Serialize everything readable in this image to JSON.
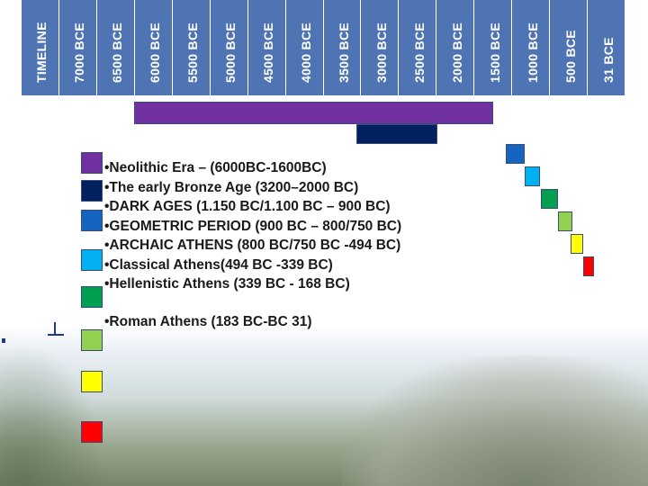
{
  "timeline": {
    "labels": [
      "TIMELINE",
      "7000 BCE",
      "6500 BCE",
      "6000 BCE",
      "5500 BCE",
      "5000 BCE",
      "4500 BCE",
      "4000 BCE",
      "3500 BCE",
      "3000 BCE",
      "2500 BCE",
      "2000 BCE",
      "1500 BCE",
      "1000 BCE",
      "500 BCE",
      "31 BCE"
    ]
  },
  "legend": {
    "items": [
      {
        "text": "•Neolithic Era – (6000BC-1600BC)",
        "color": "#7030a0"
      },
      {
        "text": "•The early Bronze Age (3200–2000 BC)",
        "color": "#002060"
      },
      {
        "text": "•DARK AGES (1.150 BC/1.100 BC – 900 BC)",
        "color": "#1565c0"
      },
      {
        "text": "•GEOMETRIC PERIOD (900 BC – 800/750 BC)",
        "color": "#00b0f0"
      },
      {
        "text": "•ARCHAIC ATHENS   (800 BC/750 BC -494 BC)",
        "color": "#00a050"
      },
      {
        "text": "•Classical Athens(494 BC -339 BC)",
        "color": "#92d050"
      },
      {
        "text": "•Hellenistic Athens (339 BC - 168 BC)",
        "color": "#ffff00"
      },
      {
        "text": "•Roman Athens  (183 BC-BC 31)",
        "color": "#ff0000"
      }
    ]
  },
  "colors": {
    "header": "#4f74b4",
    "neolithic": "#7030a0",
    "bronze": "#002060",
    "dark_ages": "#1565c0",
    "geometric": "#00b0f0",
    "archaic": "#00a050",
    "classical": "#92d050",
    "hellenistic": "#ffff00",
    "roman": "#ff0000"
  }
}
